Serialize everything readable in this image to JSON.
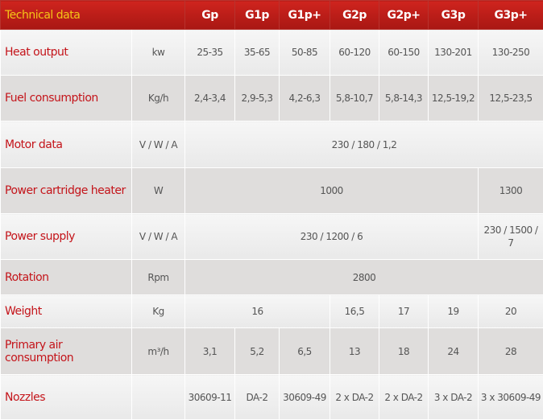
{
  "title": "Technical data",
  "models": [
    "Gp",
    "G1p",
    "G1p+",
    "G2p",
    "G2p+",
    "G3p",
    "G3p+"
  ],
  "rows": {
    "heat": {
      "label": "Heat output",
      "unit": "kw",
      "values": [
        "25-35",
        "35-65",
        "50-85",
        "60-120",
        "60-150",
        "130-201",
        "130-250"
      ]
    },
    "fuel": {
      "label": "Fuel consumption",
      "unit": "Kg/h",
      "values": [
        "2,4-3,4",
        "2,9-5,3",
        "4,2-6,3",
        "5,8-10,7",
        "5,8-14,3",
        "12,5-19,2",
        "12,5-23,5"
      ]
    },
    "motor": {
      "label": "Motor data",
      "unit": "V / W / A",
      "value": "230 / 180 / 1,2"
    },
    "cartridge": {
      "label": "Power cartridge heater",
      "unit": "W",
      "value_g_to_g3p": "1000",
      "value_g3pplus": "1300"
    },
    "supply": {
      "label": "Power supply",
      "unit": "V / W / A",
      "value_g_to_g3p": "230 / 1200 / 6",
      "value_g3pplus": "230 / 1500 / 7"
    },
    "rotation": {
      "label": "Rotation",
      "unit": "Rpm",
      "value": "2800"
    },
    "weight": {
      "label": "Weight",
      "unit": "Kg",
      "values": [
        "16",
        "16,5",
        "17",
        "19",
        "20"
      ]
    },
    "air": {
      "label": "Primary air consumption",
      "unit": "m³/h",
      "values": [
        "3,1",
        "5,2",
        "6,5",
        "13",
        "18",
        "24",
        "28"
      ]
    },
    "nozzles": {
      "label": "Nozzles",
      "unit": "",
      "values": [
        "30609-11",
        "DA-2",
        "30609-49",
        "2 x DA-2",
        "2 x DA-2",
        "3 x DA-2",
        "3 x 30609-49"
      ]
    }
  },
  "colors": {
    "header": "#c01d18",
    "title": "#f5c518",
    "label": "#c4141a"
  }
}
